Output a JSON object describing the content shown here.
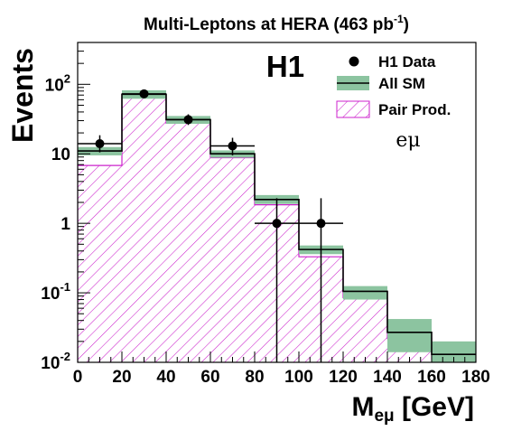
{
  "chart_data": {
    "type": "bar",
    "title": {
      "main": "Multi-Leptons at HERA (463 pb",
      "sup": "-1",
      "end": ")"
    },
    "experiment_label": "H1",
    "channel_label": "eμ",
    "xlabel": {
      "main": "M",
      "sub": "eμ",
      "unit": " [GeV]"
    },
    "ylabel": "Events",
    "xlim": [
      0,
      180
    ],
    "ylim": [
      0.01,
      400
    ],
    "y_scale": "log",
    "bin_edges": [
      0,
      20,
      40,
      60,
      80,
      100,
      120,
      140,
      160,
      180
    ],
    "x_ticks": [
      "0",
      "20",
      "40",
      "60",
      "80",
      "100",
      "120",
      "140",
      "160",
      "180"
    ],
    "y_ticks": [
      {
        "value": 0.01,
        "base": "10",
        "sup": "-2"
      },
      {
        "value": 0.1,
        "base": "10",
        "sup": "-1"
      },
      {
        "value": 1,
        "base": "1",
        "sup": ""
      },
      {
        "value": 10,
        "base": "10",
        "sup": ""
      },
      {
        "value": 100,
        "base": "10",
        "sup": "2"
      }
    ],
    "series": [
      {
        "name": "All SM",
        "kind": "step-with-band",
        "values": [
          11.0,
          72.0,
          31.0,
          10.0,
          2.2,
          0.42,
          0.105,
          0.027,
          0.013
        ],
        "band_low": [
          9.5,
          62.0,
          27.0,
          8.8,
          1.9,
          0.36,
          0.08,
          0.014,
          0.01
        ],
        "band_high": [
          12.5,
          82.0,
          35.0,
          11.2,
          2.55,
          0.48,
          0.125,
          0.042,
          0.02
        ]
      },
      {
        "name": "Pair Prod.",
        "kind": "hatched-histogram",
        "values": [
          6.8,
          64.0,
          27.5,
          8.8,
          1.85,
          0.33,
          0.085,
          0.022,
          0.011
        ]
      },
      {
        "name": "H1 Data",
        "kind": "points",
        "points": [
          {
            "x": 10,
            "y": 14,
            "ylow": 10.5,
            "yhigh": 18.5,
            "xerr": 10
          },
          {
            "x": 30,
            "y": 73,
            "ylow": 65,
            "yhigh": 82,
            "xerr": 10
          },
          {
            "x": 50,
            "y": 31,
            "ylow": 26,
            "yhigh": 37,
            "xerr": 10
          },
          {
            "x": 70,
            "y": 13,
            "ylow": 9.5,
            "yhigh": 17,
            "xerr": 10
          },
          {
            "x": 90,
            "y": 1,
            "ylow": 0.01,
            "yhigh": 2.3,
            "xerr": 10
          },
          {
            "x": 110,
            "y": 1,
            "ylow": 0.01,
            "yhigh": 2.3,
            "xerr": 10
          }
        ]
      }
    ],
    "legend": {
      "placement": "top-right",
      "entries": [
        "H1 Data",
        "All SM",
        "Pair Prod."
      ]
    },
    "colors": {
      "band": "#8cc4a0",
      "hatch": "#cc22cc",
      "line": "#000000"
    }
  }
}
